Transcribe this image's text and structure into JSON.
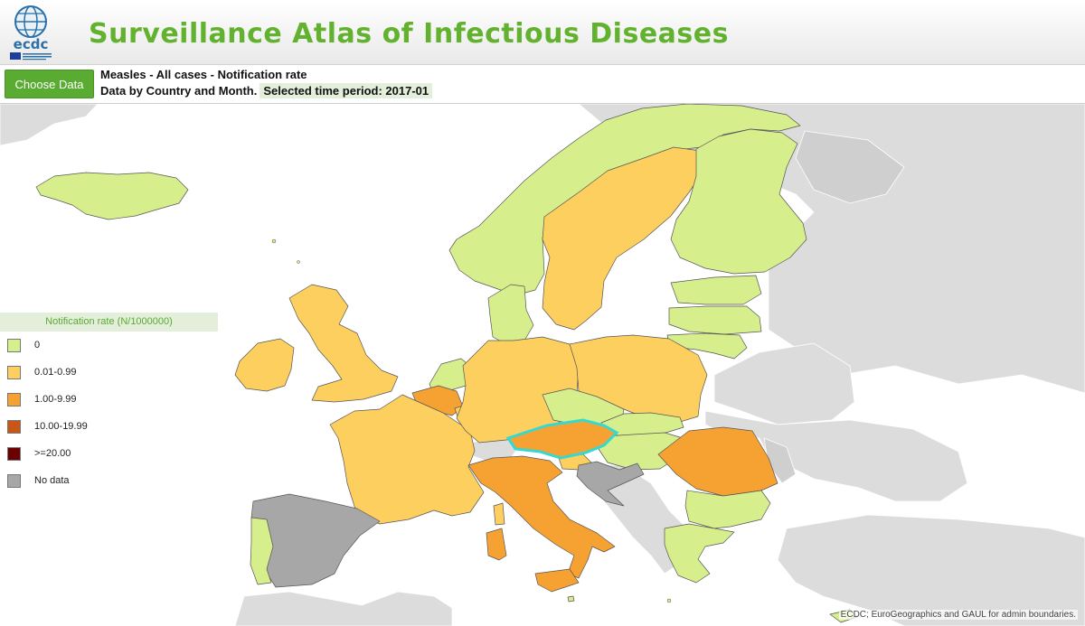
{
  "header": {
    "logo_text": "ecdc",
    "title": "Surveillance Atlas of Infectious Diseases"
  },
  "toolbar": {
    "choose_label": "Choose Data",
    "line1": "Measles - All cases - Notification rate",
    "line2": "Data by Country and Month.",
    "period": "Selected time period: 2017-01"
  },
  "colors": {
    "class0": "#d6ee8c",
    "class1": "#fdcf5f",
    "class2": "#f6a233",
    "class3": "#c75617",
    "class4": "#6b0000",
    "nodata": "#a7a7a7",
    "nonmember": "#dcdcdc",
    "sea": "#ffffff",
    "highlight": "#34d9d2"
  },
  "legend": {
    "title": "Notification rate  (N/1000000)",
    "items": [
      {
        "label": "0",
        "color": "#d6ee8c"
      },
      {
        "label": "0.01-0.99",
        "color": "#fdcf5f"
      },
      {
        "label": "1.00-9.99",
        "color": "#f6a233"
      },
      {
        "label": "10.00-19.99",
        "color": "#c75617"
      },
      {
        "label": ">=20.00",
        "color": "#6b0000"
      },
      {
        "label": "No data",
        "color": "#a7a7a7"
      }
    ]
  },
  "attribution": "ECDC; EuroGeographics and GAUL for admin boundaries.",
  "countries": [
    {
      "id": "iceland",
      "class": "class0"
    },
    {
      "id": "norway",
      "class": "class0"
    },
    {
      "id": "sweden",
      "class": "class1"
    },
    {
      "id": "finland",
      "class": "class0"
    },
    {
      "id": "estonia",
      "class": "class0"
    },
    {
      "id": "latvia",
      "class": "class0"
    },
    {
      "id": "lithuania",
      "class": "class0"
    },
    {
      "id": "denmark",
      "class": "class0"
    },
    {
      "id": "ireland",
      "class": "class1"
    },
    {
      "id": "united-kingdom",
      "class": "class1"
    },
    {
      "id": "netherlands",
      "class": "class0"
    },
    {
      "id": "belgium",
      "class": "class2"
    },
    {
      "id": "luxembourg",
      "class": "class1"
    },
    {
      "id": "france",
      "class": "class1"
    },
    {
      "id": "germany",
      "class": "class1"
    },
    {
      "id": "poland",
      "class": "class1"
    },
    {
      "id": "czechia",
      "class": "class0"
    },
    {
      "id": "slovakia",
      "class": "class0"
    },
    {
      "id": "austria",
      "class": "class2",
      "selected": true
    },
    {
      "id": "hungary",
      "class": "class0"
    },
    {
      "id": "slovenia",
      "class": "class1"
    },
    {
      "id": "croatia",
      "class": "nodata"
    },
    {
      "id": "romania",
      "class": "class2"
    },
    {
      "id": "bulgaria",
      "class": "class0"
    },
    {
      "id": "greece",
      "class": "class0"
    },
    {
      "id": "italy",
      "class": "class2"
    },
    {
      "id": "spain",
      "class": "nodata"
    },
    {
      "id": "portugal",
      "class": "class0"
    },
    {
      "id": "malta",
      "class": "class0"
    },
    {
      "id": "cyprus",
      "class": "class0"
    }
  ]
}
